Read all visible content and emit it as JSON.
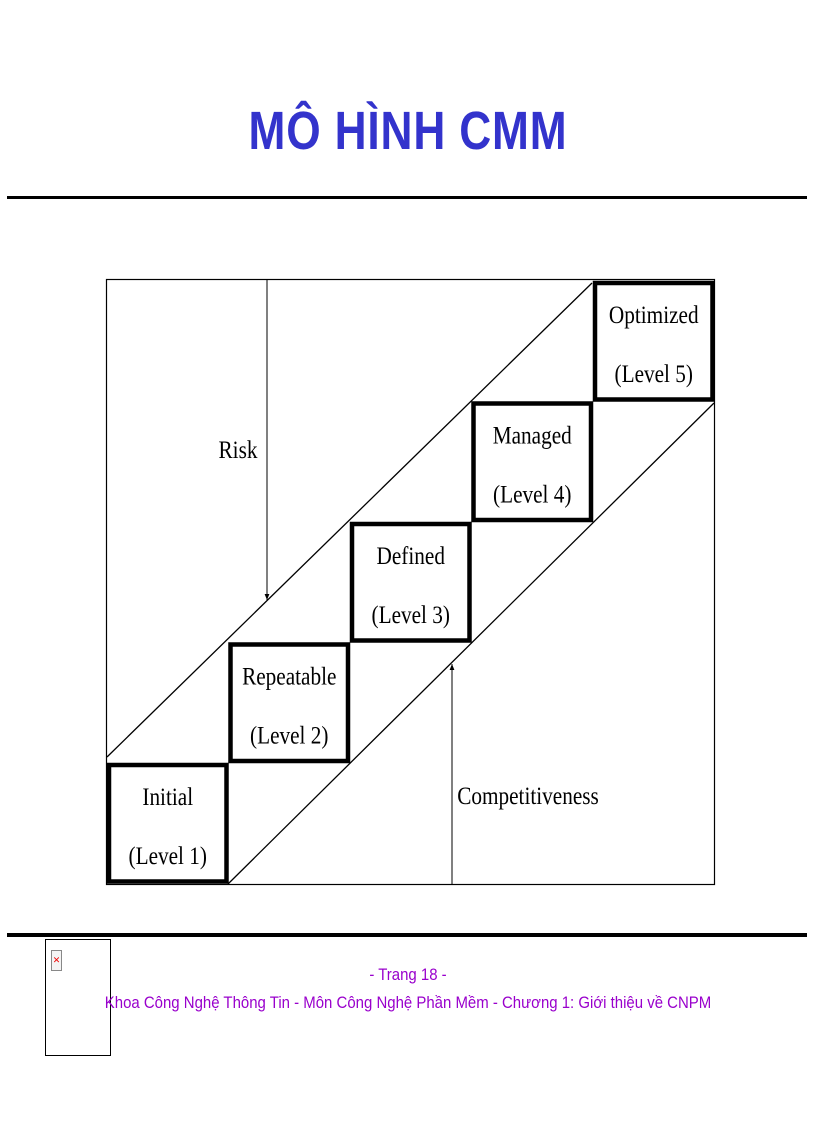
{
  "title": "MÔ HÌNH CMM",
  "diagram": {
    "levels": [
      {
        "name": "Initial",
        "level": "(Level 1)"
      },
      {
        "name": "Repeatable",
        "level": "(Level 2)"
      },
      {
        "name": "Defined",
        "level": "(Level 3)"
      },
      {
        "name": "Managed",
        "level": "(Level 4)"
      },
      {
        "name": "Optimized",
        "level": "(Level 5)"
      }
    ],
    "risk_label": "Risk",
    "competitiveness_label": "Competitiveness"
  },
  "footer": {
    "page": "- Trang 18 -",
    "caption": "Khoa Công Nghệ Thông Tin - Môn Công Nghệ Phần Mềm - Chương 1: Giới thiệu về CNPM",
    "broken_image_icon": "broken-image-icon"
  },
  "colors": {
    "title": "#3333cc",
    "footer": "#9900cc"
  }
}
